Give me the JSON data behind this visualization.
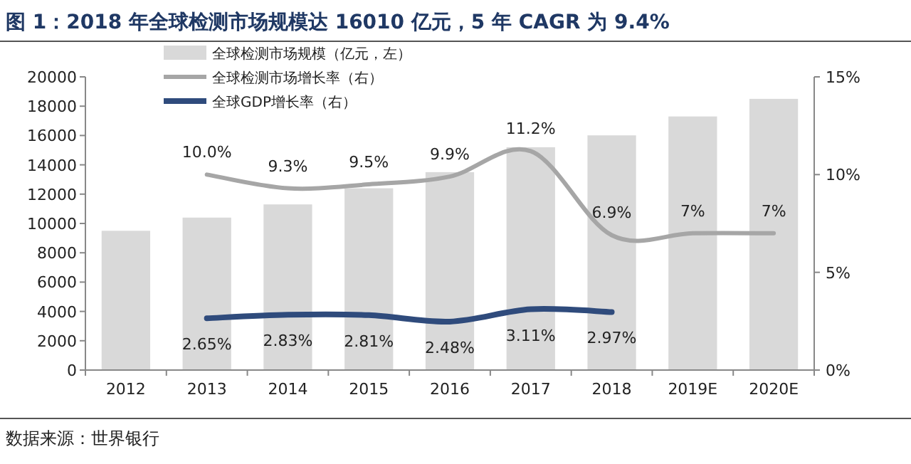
{
  "chart_data": {
    "type": "bar",
    "title": "图 1：2018 年全球检测市场规模达 16010 亿元，5 年 CAGR 为 9.4%",
    "annotations": [
      "数据来源：世界银行"
    ],
    "categories": [
      "2012",
      "2013",
      "2014",
      "2015",
      "2016",
      "2017",
      "2018",
      "2019E",
      "2020E"
    ],
    "ylim": [
      0,
      20000
    ],
    "yticks": [
      0,
      2000,
      4000,
      6000,
      8000,
      10000,
      12000,
      14000,
      16000,
      18000,
      20000
    ],
    "y2lim": [
      0,
      15
    ],
    "y2ticks": [
      {
        "value": 0,
        "label": "0%"
      },
      {
        "value": 5,
        "label": "5%"
      },
      {
        "value": 10,
        "label": "10%"
      },
      {
        "value": 15,
        "label": "15%"
      }
    ],
    "legend": "top left",
    "grid": false,
    "series": [
      {
        "name": "全球检测市场规模（亿元，左）",
        "color": "#d9d9d9",
        "values": [
          9500,
          10400,
          11300,
          12400,
          13500,
          15200,
          16010,
          17300,
          18500
        ]
      },
      {
        "name": "全球检测市场增长率（右）",
        "type": "line",
        "axis": "y2",
        "color": "#a6a6a6",
        "values": [
          null,
          10.0,
          9.3,
          9.5,
          9.9,
          11.2,
          6.9,
          7,
          7
        ],
        "value_labels": [
          null,
          "10.0%",
          "9.3%",
          "9.5%",
          "9.9%",
          "11.2%",
          "6.9%",
          "7%",
          "7%"
        ]
      },
      {
        "name": "全球GDP增长率（右）",
        "type": "line",
        "axis": "y2",
        "color": "#2f4b7c",
        "values": [
          null,
          2.65,
          2.83,
          2.81,
          2.48,
          3.11,
          2.97,
          null,
          null
        ],
        "value_labels": [
          null,
          "2.65%",
          "2.83%",
          "2.81%",
          "2.48%",
          "3.11%",
          "2.97%",
          null,
          null
        ]
      }
    ]
  }
}
